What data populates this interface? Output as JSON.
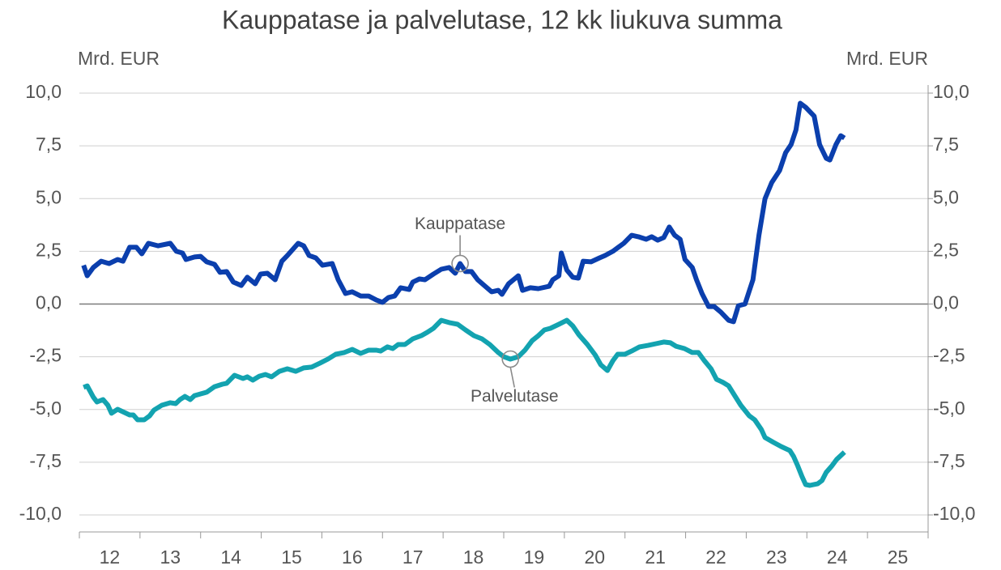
{
  "chart_data": {
    "type": "line",
    "title": "Kauppatase ja palvelutase, 12 kk liukuva summa",
    "y_label": "Mrd. EUR",
    "y2_label": "Mrd. EUR",
    "categories": [
      "12",
      "13",
      "14",
      "15",
      "16",
      "17",
      "18",
      "19",
      "20",
      "21",
      "22",
      "23",
      "24",
      "25"
    ],
    "xlim": [
      12,
      26
    ],
    "ylim": [
      -10,
      10
    ],
    "yticks": [
      {
        "value": -10,
        "label": "-10,0"
      },
      {
        "value": -7.5,
        "label": "-7,5"
      },
      {
        "value": -5,
        "label": "-5,0"
      },
      {
        "value": -2.5,
        "label": "-2,5"
      },
      {
        "value": 0,
        "label": "0,0"
      },
      {
        "value": 2.5,
        "label": "2,5"
      },
      {
        "value": 5,
        "label": "5,0"
      },
      {
        "value": 7.5,
        "label": "7,5"
      },
      {
        "value": 10,
        "label": "10,0"
      }
    ],
    "y2lim": [
      -10,
      10
    ],
    "y2ticks": [
      {
        "value": -10,
        "label": "-10,0"
      },
      {
        "value": -7.5,
        "label": "-7,5"
      },
      {
        "value": -5,
        "label": "-5,0"
      },
      {
        "value": -2.5,
        "label": "-2,5"
      },
      {
        "value": 0,
        "label": "0,0"
      },
      {
        "value": 2.5,
        "label": "2,5"
      },
      {
        "value": 5,
        "label": "5,0"
      },
      {
        "value": 7.5,
        "label": "7,5"
      },
      {
        "value": 10,
        "label": "10,0"
      }
    ],
    "grid": true,
    "series": [
      {
        "name": "Kauppatase",
        "color": "#0b3fad",
        "x": [
          12.07,
          12.13,
          12.23,
          12.36,
          12.49,
          12.63,
          12.72,
          12.83,
          12.94,
          13.03,
          13.14,
          13.3,
          13.5,
          13.6,
          13.7,
          13.76,
          13.9,
          14.0,
          14.1,
          14.23,
          14.32,
          14.43,
          14.54,
          14.67,
          14.77,
          14.9,
          14.99,
          15.1,
          15.23,
          15.34,
          15.43,
          15.61,
          15.7,
          15.79,
          15.9,
          16.01,
          16.17,
          16.27,
          16.39,
          16.5,
          16.64,
          16.77,
          16.9,
          17.0,
          17.1,
          17.2,
          17.3,
          17.44,
          17.5,
          17.61,
          17.7,
          17.84,
          17.97,
          18.1,
          18.2,
          18.28,
          18.37,
          18.47,
          18.57,
          18.68,
          18.8,
          18.91,
          18.97,
          19.08,
          19.24,
          19.31,
          19.44,
          19.57,
          19.75,
          19.81,
          19.91,
          19.95,
          20.04,
          20.14,
          20.23,
          20.31,
          20.44,
          20.58,
          20.67,
          20.8,
          20.98,
          21.11,
          21.22,
          21.35,
          21.44,
          21.54,
          21.64,
          21.73,
          21.82,
          21.91,
          21.99,
          22.11,
          22.18,
          22.27,
          22.38,
          22.47,
          22.58,
          22.71,
          22.79,
          22.87,
          22.98,
          23.11,
          23.21,
          23.31,
          23.42,
          23.55,
          23.65,
          23.74,
          23.82,
          23.89,
          23.98,
          24.12,
          24.21,
          24.32,
          24.38,
          24.48,
          24.56,
          24.62
        ],
        "values": [
          1.84,
          1.34,
          1.73,
          2.03,
          1.92,
          2.11,
          2.03,
          2.69,
          2.69,
          2.38,
          2.88,
          2.76,
          2.88,
          2.5,
          2.42,
          2.11,
          2.23,
          2.26,
          2.0,
          1.88,
          1.5,
          1.54,
          1.04,
          0.88,
          1.27,
          0.96,
          1.42,
          1.46,
          1.15,
          2.03,
          2.3,
          2.88,
          2.76,
          2.3,
          2.19,
          1.84,
          1.92,
          1.15,
          0.5,
          0.58,
          0.38,
          0.38,
          0.19,
          0.08,
          0.31,
          0.38,
          0.77,
          0.69,
          1.04,
          1.19,
          1.15,
          1.42,
          1.65,
          1.73,
          1.46,
          1.92,
          1.54,
          1.54,
          1.15,
          0.88,
          0.58,
          0.65,
          0.46,
          0.96,
          1.34,
          0.65,
          0.77,
          0.73,
          0.84,
          1.15,
          1.34,
          2.42,
          1.61,
          1.27,
          1.23,
          2.03,
          2.0,
          2.19,
          2.3,
          2.5,
          2.88,
          3.26,
          3.19,
          3.07,
          3.19,
          3.03,
          3.15,
          3.65,
          3.26,
          3.07,
          2.11,
          1.73,
          1.15,
          0.5,
          -0.12,
          -0.12,
          -0.38,
          -0.77,
          -0.84,
          -0.08,
          0.0,
          1.15,
          3.26,
          4.99,
          5.76,
          6.33,
          7.18,
          7.56,
          8.25,
          9.52,
          9.33,
          8.91,
          7.56,
          6.91,
          6.83,
          7.56,
          7.98,
          7.87
        ]
      },
      {
        "name": "Palvelutase",
        "color": "#13a3b0",
        "x": [
          12.07,
          12.13,
          12.23,
          12.29,
          12.39,
          12.47,
          12.53,
          12.63,
          12.72,
          12.83,
          12.89,
          12.96,
          13.07,
          13.16,
          13.23,
          13.36,
          13.5,
          13.59,
          13.66,
          13.74,
          13.83,
          13.9,
          14.0,
          14.1,
          14.23,
          14.36,
          14.43,
          14.56,
          14.7,
          14.77,
          14.86,
          14.97,
          15.07,
          15.17,
          15.3,
          15.43,
          15.57,
          15.7,
          15.83,
          15.97,
          16.1,
          16.23,
          16.37,
          16.5,
          16.64,
          16.77,
          16.9,
          16.97,
          17.08,
          17.17,
          17.26,
          17.37,
          17.5,
          17.64,
          17.74,
          17.84,
          17.97,
          18.1,
          18.24,
          18.37,
          18.51,
          18.64,
          18.77,
          18.91,
          19.0,
          19.11,
          19.24,
          19.35,
          19.47,
          19.57,
          19.67,
          19.77,
          19.91,
          20.04,
          20.14,
          20.24,
          20.38,
          20.51,
          20.6,
          20.71,
          20.8,
          20.88,
          21.0,
          21.11,
          21.24,
          21.38,
          21.51,
          21.64,
          21.75,
          21.84,
          21.98,
          22.11,
          22.21,
          22.31,
          22.42,
          22.51,
          22.62,
          22.71,
          22.81,
          22.91,
          23.05,
          23.14,
          23.25,
          23.31,
          23.45,
          23.58,
          23.72,
          23.78,
          23.85,
          23.92,
          23.98,
          24.05,
          24.18,
          24.25,
          24.32,
          24.41,
          24.49,
          24.62
        ],
        "values": [
          -3.95,
          -3.88,
          -4.41,
          -4.64,
          -4.53,
          -4.8,
          -5.18,
          -4.99,
          -5.11,
          -5.26,
          -5.26,
          -5.49,
          -5.49,
          -5.3,
          -5.03,
          -4.8,
          -4.68,
          -4.72,
          -4.53,
          -4.38,
          -4.53,
          -4.34,
          -4.26,
          -4.18,
          -3.92,
          -3.8,
          -3.76,
          -3.38,
          -3.53,
          -3.45,
          -3.61,
          -3.42,
          -3.34,
          -3.45,
          -3.19,
          -3.07,
          -3.19,
          -3.03,
          -2.99,
          -2.8,
          -2.61,
          -2.38,
          -2.3,
          -2.15,
          -2.34,
          -2.19,
          -2.19,
          -2.23,
          -2.03,
          -2.11,
          -1.92,
          -1.92,
          -1.65,
          -1.5,
          -1.34,
          -1.15,
          -0.77,
          -0.88,
          -0.96,
          -1.23,
          -1.5,
          -1.65,
          -1.92,
          -2.3,
          -2.5,
          -2.61,
          -2.5,
          -2.19,
          -1.73,
          -1.5,
          -1.23,
          -1.15,
          -0.96,
          -0.77,
          -1.04,
          -1.46,
          -1.92,
          -2.42,
          -2.88,
          -3.15,
          -2.69,
          -2.38,
          -2.38,
          -2.23,
          -2.03,
          -1.96,
          -1.88,
          -1.8,
          -1.84,
          -2.0,
          -2.11,
          -2.3,
          -2.3,
          -2.69,
          -3.07,
          -3.57,
          -3.72,
          -3.88,
          -4.34,
          -4.8,
          -5.3,
          -5.49,
          -5.95,
          -6.33,
          -6.56,
          -6.76,
          -6.95,
          -7.22,
          -7.68,
          -8.18,
          -8.56,
          -8.6,
          -8.52,
          -8.37,
          -7.98,
          -7.68,
          -7.37,
          -7.02
        ]
      }
    ]
  }
}
